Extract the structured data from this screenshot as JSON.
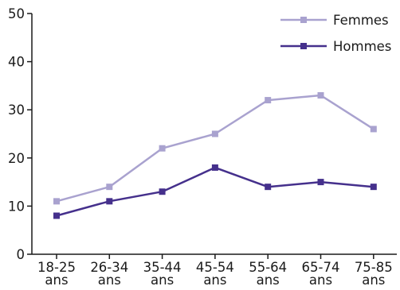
{
  "colors": {
    "axis": "#1a1a1a",
    "femmes": "#a9a2cf",
    "hommes": "#45308c"
  },
  "chart_data": {
    "type": "line",
    "title": "",
    "xlabel": "",
    "ylabel": "",
    "categories": [
      [
        "18-25",
        "ans"
      ],
      [
        "26-34",
        "ans"
      ],
      [
        "35-44",
        "ans"
      ],
      [
        "45-54",
        "ans"
      ],
      [
        "55-64",
        "ans"
      ],
      [
        "65-74",
        "ans"
      ],
      [
        "75-85",
        "ans"
      ]
    ],
    "yticks": [
      0,
      10,
      20,
      30,
      40,
      50
    ],
    "ylim": [
      0,
      50
    ],
    "grid": false,
    "legend_position": "top-right",
    "marker": "square",
    "series": [
      {
        "name": "Femmes",
        "color": "#a9a2cf",
        "values": [
          11,
          14,
          22,
          25,
          32,
          33,
          26
        ]
      },
      {
        "name": "Hommes",
        "color": "#45308c",
        "values": [
          8,
          11,
          13,
          18,
          14,
          15,
          14
        ]
      }
    ]
  }
}
